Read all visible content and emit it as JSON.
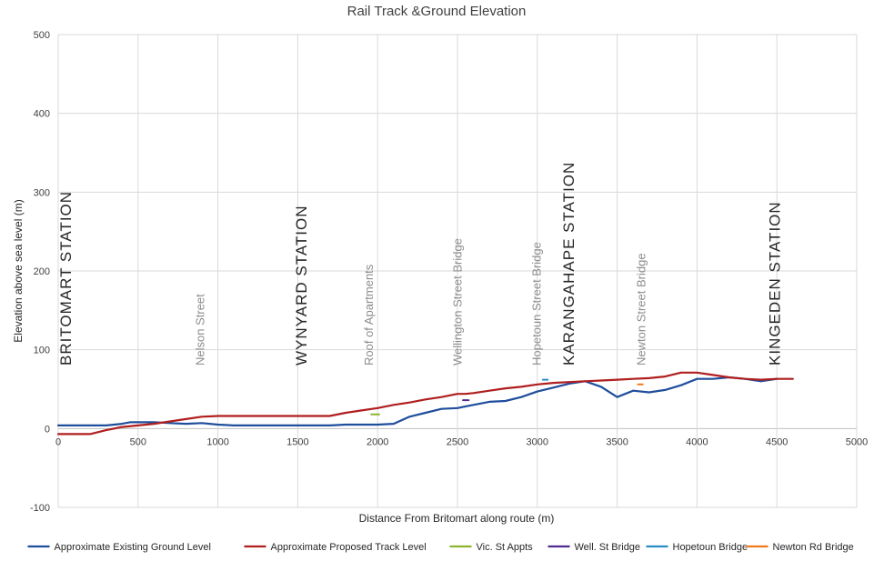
{
  "chart_data": {
    "type": "line",
    "title": "Rail Track &Ground Elevation",
    "xlabel": "Distance From Britomart along route (m)",
    "ylabel": "Elevation above sea level (m)",
    "xlim": [
      0,
      5000
    ],
    "ylim": [
      -100,
      500
    ],
    "xticks": [
      0,
      500,
      1000,
      1500,
      2000,
      2500,
      3000,
      3500,
      4000,
      4500,
      5000
    ],
    "yticks": [
      -100,
      0,
      100,
      200,
      300,
      400,
      500
    ],
    "grid": true,
    "legend_position": "bottom",
    "series": [
      {
        "name": "Approximate Existing Ground Level",
        "color": "#1f4e9c",
        "x": [
          0,
          100,
          200,
          300,
          400,
          450,
          500,
          600,
          700,
          800,
          900,
          1000,
          1100,
          1200,
          1300,
          1400,
          1500,
          1600,
          1700,
          1800,
          1900,
          2000,
          2100,
          2200,
          2300,
          2400,
          2500,
          2600,
          2700,
          2800,
          2900,
          3000,
          3100,
          3200,
          3300,
          3400,
          3500,
          3600,
          3700,
          3800,
          3900,
          4000,
          4100,
          4200,
          4300,
          4400,
          4500
        ],
        "y": [
          4,
          4,
          4,
          4,
          6,
          8,
          8,
          8,
          7,
          6,
          7,
          5,
          4,
          4,
          4,
          4,
          4,
          4,
          4,
          5,
          5,
          5,
          6,
          15,
          20,
          25,
          26,
          30,
          34,
          35,
          40,
          47,
          52,
          57,
          60,
          53,
          40,
          48,
          46,
          49,
          55,
          63,
          63,
          65,
          63,
          60,
          63
        ]
      },
      {
        "name": "Approximate Proposed Track Level",
        "color": "#b01e1e",
        "x": [
          0,
          200,
          300,
          400,
          500,
          600,
          700,
          800,
          900,
          1000,
          1100,
          1200,
          1300,
          1400,
          1500,
          1600,
          1700,
          1800,
          1900,
          2000,
          2100,
          2200,
          2300,
          2400,
          2500,
          2550,
          2600,
          2700,
          2800,
          2900,
          3000,
          3100,
          3200,
          3300,
          3400,
          3500,
          3600,
          3700,
          3800,
          3900,
          4000,
          4100,
          4200,
          4300,
          4400,
          4500,
          4600
        ],
        "y": [
          -7,
          -7,
          -2,
          2,
          4,
          6,
          9,
          12,
          15,
          16,
          16,
          16,
          16,
          16,
          16,
          16,
          16,
          20,
          23,
          26,
          30,
          33,
          37,
          40,
          44,
          44,
          45,
          48,
          51,
          53,
          56,
          58,
          59,
          60,
          61,
          62,
          63,
          64,
          66,
          71,
          71,
          68,
          65,
          63,
          62,
          63,
          63
        ]
      },
      {
        "name": "Vic. St Appts",
        "color": "#8db52e",
        "x": [
          1960,
          2010
        ],
        "y": [
          18,
          18
        ]
      },
      {
        "name": "Well. St Bridge",
        "color": "#4f2a8f",
        "x": [
          2535,
          2570
        ],
        "y": [
          36,
          36
        ]
      },
      {
        "name": "Hopetoun Bridge",
        "color": "#2a8ec4",
        "x": [
          3035,
          3065
        ],
        "y": [
          62,
          62
        ]
      },
      {
        "name": "Newton Rd Bridge",
        "color": "#ee7a1a",
        "x": [
          3630,
          3660
        ],
        "y": [
          56,
          56
        ]
      }
    ],
    "annotations": [
      {
        "text": "BRITOMART STATION",
        "x": 80,
        "kind": "station"
      },
      {
        "text": "Nelson Street",
        "x": 915,
        "kind": "landmark"
      },
      {
        "text": "WYNYARD STATION",
        "x": 1555,
        "kind": "station"
      },
      {
        "text": "Roof of Apartments",
        "x": 1970,
        "kind": "landmark"
      },
      {
        "text": "Wellington Street Bridge",
        "x": 2525,
        "kind": "landmark"
      },
      {
        "text": "Hopetoun Street Bridge",
        "x": 3020,
        "kind": "landmark"
      },
      {
        "text": "KARANGAHAPE STATION",
        "x": 3230,
        "kind": "station"
      },
      {
        "text": "Newton Street Bridge",
        "x": 3675,
        "kind": "landmark"
      },
      {
        "text": "KINGEDEN STATION",
        "x": 4520,
        "kind": "station"
      }
    ]
  }
}
